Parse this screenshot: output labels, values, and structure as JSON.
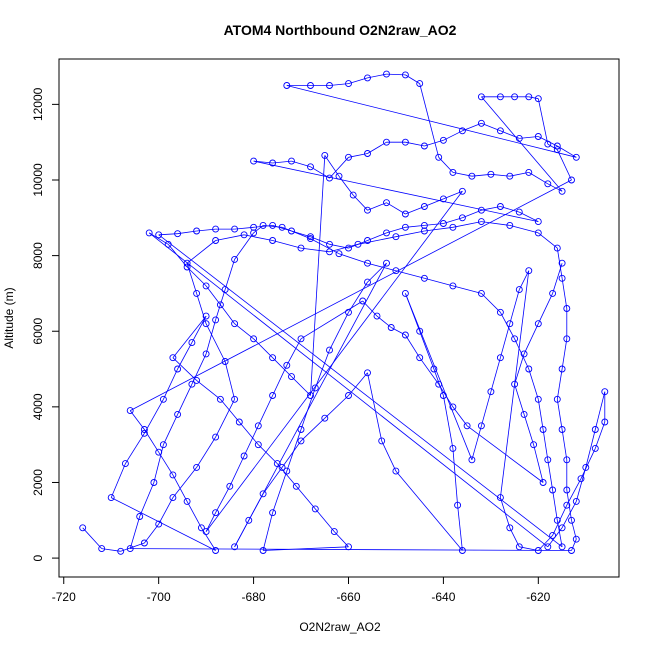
{
  "chart_data": {
    "type": "scatter",
    "title": "ATOM4 Northbound O2N2raw_AO2",
    "xlabel": "O2N2raw_AO2",
    "ylabel": "Altitude (m)",
    "xlim": [
      -721,
      -603
    ],
    "ylim": [
      -500,
      13200
    ],
    "x_ticks": [
      -720,
      -700,
      -680,
      -660,
      -640,
      -620
    ],
    "y_ticks": [
      0,
      2000,
      4000,
      6000,
      8000,
      10000,
      12000
    ],
    "x_tick_labels": [
      "-720",
      "-700",
      "-680",
      "-660",
      "-640",
      "-620"
    ],
    "y_tick_labels": [
      "0",
      "2000",
      "4000",
      "6000",
      "8000",
      "10000",
      "12000"
    ],
    "grid": false,
    "color": "#0000ff",
    "series": [
      {
        "marker": "open-circle",
        "connected": true,
        "points": [
          [
            -716,
            800
          ],
          [
            -712,
            250
          ],
          [
            -708,
            180
          ],
          [
            -703,
            400
          ],
          [
            -700,
            900
          ],
          [
            -697,
            1600
          ],
          [
            -692,
            2400
          ],
          [
            -688,
            3200
          ],
          [
            -684,
            4200
          ],
          [
            -686,
            5200
          ],
          [
            -690,
            6200
          ],
          [
            -692,
            7000
          ],
          [
            -694,
            7800
          ],
          [
            -688,
            8400
          ],
          [
            -682,
            8550
          ],
          [
            -676,
            8400
          ],
          [
            -670,
            8200
          ],
          [
            -664,
            8100
          ],
          [
            -658,
            8300
          ],
          [
            -650,
            8500
          ],
          [
            -644,
            8650
          ],
          [
            -638,
            8750
          ],
          [
            -632,
            8900
          ],
          [
            -626,
            8800
          ],
          [
            -620,
            8600
          ],
          [
            -616,
            8200
          ],
          [
            -615,
            7400
          ],
          [
            -614,
            6600
          ],
          [
            -614,
            5800
          ],
          [
            -615,
            5000
          ],
          [
            -616,
            4200
          ],
          [
            -615,
            3400
          ],
          [
            -614,
            2600
          ],
          [
            -614,
            1800
          ],
          [
            -613,
            1000
          ],
          [
            -612,
            500
          ],
          [
            -613,
            200
          ],
          [
            -706,
            250
          ],
          [
            -704,
            1100
          ],
          [
            -701,
            2000
          ],
          [
            -699,
            3000
          ],
          [
            -696,
            3800
          ],
          [
            -693,
            4600
          ],
          [
            -690,
            5400
          ],
          [
            -688,
            6300
          ],
          [
            -686,
            7100
          ],
          [
            -684,
            7900
          ],
          [
            -680,
            8600
          ],
          [
            -678,
            8800
          ],
          [
            -674,
            8750
          ],
          [
            -668,
            8450
          ],
          [
            -662,
            8050
          ],
          [
            -656,
            7800
          ],
          [
            -650,
            7600
          ],
          [
            -644,
            7400
          ],
          [
            -638,
            7200
          ],
          [
            -632,
            7000
          ],
          [
            -628,
            6500
          ],
          [
            -625,
            5800
          ],
          [
            -622,
            5000
          ],
          [
            -620,
            4200
          ],
          [
            -619,
            3400
          ],
          [
            -618,
            2600
          ],
          [
            -617,
            1800
          ],
          [
            -616,
            1000
          ],
          [
            -615,
            300
          ],
          [
            -700,
            8550
          ],
          [
            -696,
            8580
          ],
          [
            -692,
            8650
          ],
          [
            -688,
            8700
          ],
          [
            -684,
            8700
          ],
          [
            -680,
            8750
          ],
          [
            -676,
            8800
          ],
          [
            -672,
            8650
          ],
          [
            -668,
            8500
          ],
          [
            -664,
            8300
          ],
          [
            -660,
            8200
          ],
          [
            -656,
            8400
          ],
          [
            -652,
            8600
          ],
          [
            -648,
            8750
          ],
          [
            -644,
            8800
          ],
          [
            -640,
            8850
          ],
          [
            -636,
            9000
          ],
          [
            -632,
            9200
          ],
          [
            -628,
            9300
          ],
          [
            -624,
            9150
          ],
          [
            -620,
            8900
          ],
          [
            -680,
            10500
          ],
          [
            -676,
            10450
          ],
          [
            -672,
            10500
          ],
          [
            -668,
            10350
          ],
          [
            -664,
            10050
          ],
          [
            -660,
            10600
          ],
          [
            -656,
            10700
          ],
          [
            -652,
            11000
          ],
          [
            -648,
            11000
          ],
          [
            -644,
            10900
          ],
          [
            -640,
            11050
          ],
          [
            -636,
            11300
          ],
          [
            -632,
            11500
          ],
          [
            -628,
            11300
          ],
          [
            -624,
            11100
          ],
          [
            -620,
            11150
          ],
          [
            -616,
            10900
          ],
          [
            -612,
            10600
          ],
          [
            -673,
            12500
          ],
          [
            -668,
            12500
          ],
          [
            -664,
            12500
          ],
          [
            -660,
            12550
          ],
          [
            -656,
            12700
          ],
          [
            -652,
            12800
          ],
          [
            -648,
            12780
          ],
          [
            -645,
            12550
          ],
          [
            -641,
            10600
          ],
          [
            -638,
            10200
          ],
          [
            -634,
            10100
          ],
          [
            -630,
            10150
          ],
          [
            -626,
            10100
          ],
          [
            -622,
            10200
          ],
          [
            -618,
            9900
          ],
          [
            -615,
            9700
          ],
          [
            -632,
            12200
          ],
          [
            -628,
            12200
          ],
          [
            -625,
            12200
          ],
          [
            -622,
            12200
          ],
          [
            -620,
            12150
          ],
          [
            -618,
            10950
          ],
          [
            -616,
            10800
          ],
          [
            -613,
            10000
          ],
          [
            -706,
            3900
          ],
          [
            -703,
            3400
          ],
          [
            -700,
            2800
          ],
          [
            -697,
            2200
          ],
          [
            -694,
            1500
          ],
          [
            -691,
            800
          ],
          [
            -688,
            200
          ],
          [
            -710,
            1600
          ],
          [
            -707,
            2500
          ],
          [
            -703,
            3300
          ],
          [
            -699,
            4200
          ],
          [
            -696,
            5000
          ],
          [
            -693,
            5700
          ],
          [
            -690,
            6400
          ],
          [
            -697,
            5300
          ],
          [
            -692,
            4700
          ],
          [
            -687,
            4200
          ],
          [
            -683,
            3600
          ],
          [
            -679,
            3000
          ],
          [
            -675,
            2500
          ],
          [
            -671,
            1900
          ],
          [
            -667,
            1300
          ],
          [
            -663,
            700
          ],
          [
            -660,
            300
          ],
          [
            -678,
            200
          ],
          [
            -676,
            1200
          ],
          [
            -673,
            2300
          ],
          [
            -670,
            3400
          ],
          [
            -667,
            4500
          ],
          [
            -664,
            5500
          ],
          [
            -660,
            6500
          ],
          [
            -656,
            7300
          ],
          [
            -652,
            7800
          ],
          [
            -684,
            300
          ],
          [
            -681,
            1000
          ],
          [
            -678,
            1700
          ],
          [
            -674,
            2400
          ],
          [
            -670,
            3100
          ],
          [
            -665,
            3700
          ],
          [
            -660,
            4300
          ],
          [
            -656,
            4900
          ],
          [
            -653,
            3100
          ],
          [
            -650,
            2300
          ],
          [
            -636,
            200
          ],
          [
            -637,
            1400
          ],
          [
            -638,
            2900
          ],
          [
            -640,
            4300
          ],
          [
            -642,
            5000
          ],
          [
            -645,
            6000
          ],
          [
            -648,
            7000
          ],
          [
            -634,
            2600
          ],
          [
            -632,
            3500
          ],
          [
            -630,
            4400
          ],
          [
            -628,
            5300
          ],
          [
            -626,
            6200
          ],
          [
            -624,
            7100
          ],
          [
            -622,
            7600
          ],
          [
            -628,
            1600
          ],
          [
            -626,
            800
          ],
          [
            -624,
            300
          ],
          [
            -620,
            200
          ],
          [
            -617,
            600
          ],
          [
            -614,
            1400
          ],
          [
            -611,
            2100
          ],
          [
            -608,
            2900
          ],
          [
            -606,
            3600
          ],
          [
            -606,
            4400
          ],
          [
            -608,
            3400
          ],
          [
            -610,
            2400
          ],
          [
            -612,
            1500
          ],
          [
            -615,
            800
          ],
          [
            -618,
            300
          ],
          [
            -702,
            8600
          ],
          [
            -698,
            8300
          ],
          [
            -694,
            7700
          ],
          [
            -690,
            7200
          ],
          [
            -687,
            6700
          ],
          [
            -684,
            6200
          ],
          [
            -680,
            5800
          ],
          [
            -676,
            5300
          ],
          [
            -672,
            4800
          ],
          [
            -668,
            4300
          ],
          [
            -665,
            10650
          ],
          [
            -662,
            10100
          ],
          [
            -659,
            9600
          ],
          [
            -656,
            9200
          ],
          [
            -652,
            9400
          ],
          [
            -648,
            9100
          ],
          [
            -644,
            9300
          ],
          [
            -640,
            9500
          ],
          [
            -636,
            9700
          ],
          [
            -690,
            700
          ],
          [
            -688,
            1200
          ],
          [
            -685,
            1900
          ],
          [
            -682,
            2700
          ],
          [
            -679,
            3500
          ],
          [
            -676,
            4300
          ],
          [
            -673,
            5100
          ],
          [
            -670,
            5800
          ],
          [
            -657,
            6800
          ],
          [
            -654,
            6400
          ],
          [
            -651,
            6100
          ],
          [
            -648,
            5900
          ],
          [
            -645,
            5300
          ],
          [
            -641,
            4600
          ],
          [
            -638,
            4000
          ],
          [
            -635,
            3500
          ],
          [
            -619,
            2000
          ],
          [
            -621,
            3000
          ],
          [
            -623,
            3800
          ],
          [
            -625,
            4600
          ],
          [
            -623,
            5400
          ],
          [
            -620,
            6200
          ],
          [
            -617,
            7000
          ],
          [
            -615,
            7800
          ]
        ]
      }
    ]
  }
}
